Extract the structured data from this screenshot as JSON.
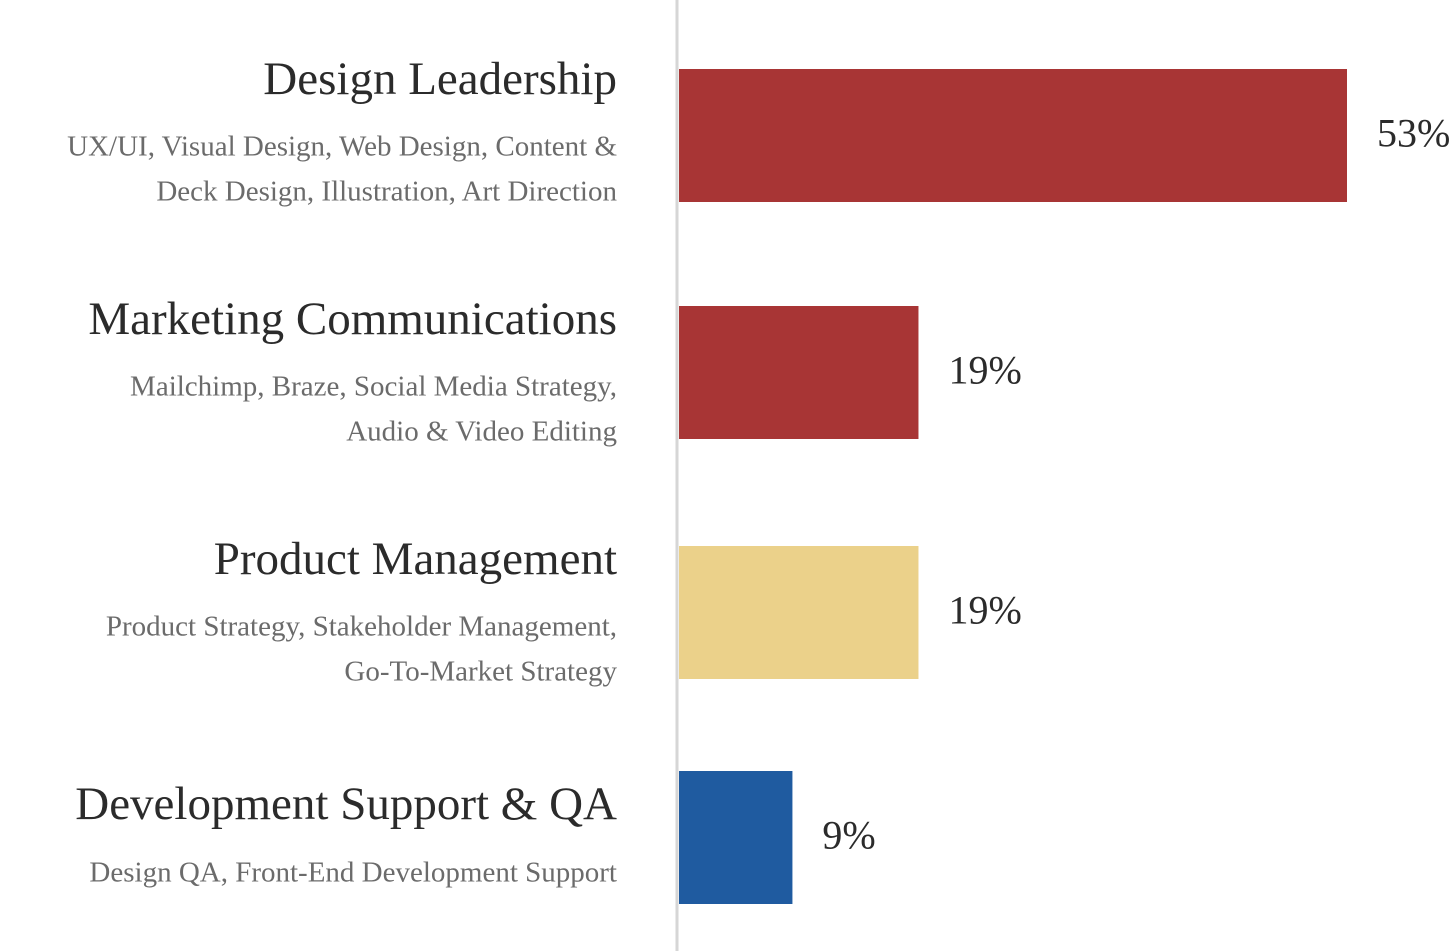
{
  "chart_data": {
    "type": "bar",
    "orientation": "horizontal",
    "categories": [
      "Design Leadership",
      "Marketing Communications",
      "Product Management",
      "Development Support & QA"
    ],
    "details": [
      [
        "UX/UI, Visual Design, Web Design, Content &",
        "Deck Design, Illustration, Art Direction"
      ],
      [
        "Mailchimp, Braze, Social Media Strategy,",
        "Audio & Video Editing"
      ],
      [
        "Product Strategy, Stakeholder Management,",
        "Go-To-Market Strategy"
      ],
      [
        "Design QA, Front-End Development Support"
      ]
    ],
    "values": [
      53,
      19,
      19,
      9
    ],
    "value_labels": [
      "53%",
      "19%",
      "19%",
      "9%"
    ],
    "colors": [
      "#a83535",
      "#a83535",
      "#ebd18a",
      "#1f5ba0"
    ]
  }
}
